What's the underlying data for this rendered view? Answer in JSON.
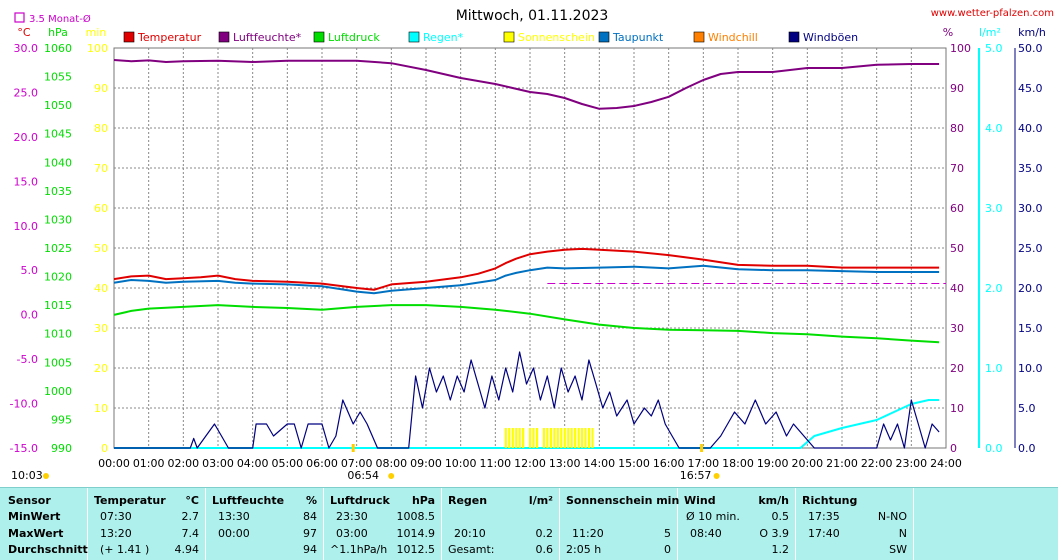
{
  "header": {
    "title": "Mittwoch, 01.11.2023",
    "site": "www.wetter-pfalzen.com",
    "monat_label": "3.5 Monat-Ø"
  },
  "colors": {
    "temperatur": "#e00000",
    "luftfeuchte": "#800080",
    "luftdruck": "#00dd00",
    "regen": "#00ffff",
    "sonnenschein": "#ffff00",
    "taupunkt": "#0070c0",
    "windchill": "#ff8000",
    "windboeen": "#000080",
    "monat": "#cc00cc",
    "grid": "#888888"
  },
  "legend": [
    {
      "key": "temperatur",
      "label": "Temperatur"
    },
    {
      "key": "luftfeuchte",
      "label": "Luftfeuchte*"
    },
    {
      "key": "luftdruck",
      "label": "Luftdruck"
    },
    {
      "key": "regen",
      "label": "Regen*"
    },
    {
      "key": "sonnenschein",
      "label": "Sonnenschein"
    },
    {
      "key": "taupunkt",
      "label": "Taupunkt"
    },
    {
      "key": "windchill",
      "label": "Windchill"
    },
    {
      "key": "windboeen",
      "label": "Windböen"
    }
  ],
  "chart_data": {
    "type": "line",
    "title": "Mittwoch, 01.11.2023",
    "xlim": [
      0,
      24
    ],
    "x_ticks": [
      "00:00",
      "01:00",
      "02:00",
      "03:00",
      "04:00",
      "05:00",
      "06:00",
      "07:00",
      "08:00",
      "09:00",
      "10:00",
      "11:00",
      "12:00",
      "13:00",
      "14:00",
      "15:00",
      "16:00",
      "17:00",
      "18:00",
      "19:00",
      "20:00",
      "21:00",
      "22:00",
      "23:00",
      "24:00"
    ],
    "sunrise": "06:54",
    "sunset": "16:57",
    "sunshine_duration": "10:03",
    "grid": true,
    "axes": {
      "temp": {
        "unit": "°C",
        "lim": [
          -15,
          30
        ],
        "ticks": [
          "30.0",
          "25.0",
          "20.0",
          "15.0",
          "10.0",
          "5.0",
          "0.0",
          "-5.0",
          "-10.0",
          "-15.0"
        ]
      },
      "press": {
        "unit": "hPa",
        "lim": [
          990,
          1060
        ],
        "ticks": [
          "1060",
          "1055",
          "1050",
          "1045",
          "1040",
          "1035",
          "1030",
          "1025",
          "1020",
          "1015",
          "1010",
          "1005",
          "1000",
          "995",
          "990"
        ]
      },
      "sunmin": {
        "unit": "min",
        "lim": [
          0,
          100
        ],
        "ticks": [
          "100",
          "90",
          "80",
          "70",
          "60",
          "50",
          "40",
          "30",
          "20",
          "10",
          "0"
        ]
      },
      "hum": {
        "unit": "%",
        "lim": [
          0,
          100
        ],
        "ticks": [
          "100",
          "90",
          "80",
          "70",
          "60",
          "50",
          "40",
          "30",
          "20",
          "10",
          "0"
        ]
      },
      "rain": {
        "unit": "l/m²",
        "lim": [
          0,
          5
        ],
        "ticks": [
          "5.0",
          "4.0",
          "3.0",
          "2.0",
          "1.0",
          "0.0"
        ]
      },
      "wind": {
        "unit": "km/h",
        "lim": [
          0,
          50
        ],
        "ticks": [
          "50.0",
          "45.0",
          "40.0",
          "35.0",
          "30.0",
          "25.0",
          "20.0",
          "15.0",
          "10.0",
          "5.0",
          "0.0"
        ]
      }
    },
    "monat_avg_temp": 3.5,
    "series": [
      {
        "name": "Temperatur",
        "axis": "temp",
        "color": "#e00000",
        "x": [
          0,
          0.5,
          1,
          1.5,
          2,
          2.5,
          3,
          3.5,
          4,
          5,
          6,
          7,
          7.5,
          8,
          9,
          10,
          10.5,
          11,
          11.3,
          11.6,
          12,
          12.5,
          13,
          13.5,
          14,
          15,
          16,
          17,
          18,
          19,
          20,
          21,
          22,
          23,
          23.8
        ],
        "y": [
          4.0,
          4.3,
          4.4,
          4.0,
          4.1,
          4.2,
          4.4,
          4.0,
          3.8,
          3.7,
          3.5,
          3.0,
          2.8,
          3.4,
          3.7,
          4.2,
          4.6,
          5.2,
          5.8,
          6.3,
          6.8,
          7.1,
          7.3,
          7.4,
          7.3,
          7.1,
          6.7,
          6.2,
          5.6,
          5.5,
          5.5,
          5.3,
          5.3,
          5.3,
          5.3
        ]
      },
      {
        "name": "Taupunkt",
        "axis": "temp",
        "color": "#0070c0",
        "x": [
          0,
          0.5,
          1,
          1.5,
          2,
          3,
          3.5,
          4,
          5,
          6,
          7,
          7.5,
          8,
          9,
          10,
          11,
          11.3,
          11.6,
          12,
          12.5,
          13,
          14,
          15,
          16,
          17,
          18,
          19,
          20,
          21,
          22,
          23,
          23.8
        ],
        "y": [
          3.6,
          3.9,
          3.8,
          3.6,
          3.7,
          3.8,
          3.6,
          3.5,
          3.4,
          3.2,
          2.6,
          2.4,
          2.7,
          3.0,
          3.3,
          3.9,
          4.4,
          4.7,
          5.0,
          5.3,
          5.2,
          5.3,
          5.4,
          5.2,
          5.5,
          5.1,
          5.0,
          5.0,
          4.9,
          4.8,
          4.8,
          4.8
        ]
      },
      {
        "name": "Luftfeuchte",
        "axis": "hum",
        "color": "#800080",
        "x": [
          0,
          0.5,
          1,
          1.5,
          2,
          3,
          4,
          5,
          6,
          7,
          8,
          9,
          10,
          11,
          12,
          12.5,
          13,
          13.5,
          14,
          14.5,
          15,
          15.5,
          16,
          16.5,
          17,
          17.5,
          18,
          19,
          20,
          21,
          22,
          23,
          23.8
        ],
        "y": [
          97,
          96.7,
          96.9,
          96.5,
          96.7,
          96.8,
          96.5,
          96.8,
          96.8,
          96.8,
          96.2,
          94.5,
          92.5,
          91.0,
          89,
          88.5,
          87.5,
          86,
          84.8,
          85,
          85.5,
          86.5,
          87.8,
          90,
          92,
          93.5,
          94,
          94,
          95,
          95,
          95.8,
          96,
          96
        ]
      },
      {
        "name": "Luftdruck",
        "axis": "press",
        "color": "#00dd00",
        "x": [
          0,
          0.5,
          1,
          2,
          3,
          4,
          5,
          6,
          7,
          8,
          9,
          10,
          11,
          12,
          13,
          14,
          15,
          16,
          17,
          18,
          19,
          20,
          21,
          22,
          23,
          23.8
        ],
        "y": [
          1013.3,
          1014,
          1014.4,
          1014.7,
          1015,
          1014.7,
          1014.5,
          1014.2,
          1014.7,
          1015,
          1015,
          1014.7,
          1014.2,
          1013.5,
          1012.5,
          1011.6,
          1011,
          1010.7,
          1010.6,
          1010.5,
          1010.1,
          1009.9,
          1009.5,
          1009.2,
          1008.8,
          1008.5
        ]
      },
      {
        "name": "Regen",
        "axis": "rain",
        "color": "#00ffff",
        "x": [
          0,
          19.8,
          20.2,
          21,
          21.5,
          22,
          22.5,
          23,
          23.5,
          23.8
        ],
        "y": [
          0,
          0,
          0.15,
          0.25,
          0.3,
          0.35,
          0.45,
          0.55,
          0.6,
          0.6
        ]
      },
      {
        "name": "Windböen",
        "axis": "wind",
        "color": "#000080",
        "x": [
          0,
          2.2,
          2.3,
          2.4,
          2.9,
          3.1,
          3.3,
          4.0,
          4.1,
          4.4,
          4.6,
          5.0,
          5.2,
          5.4,
          5.6,
          6.0,
          6.2,
          6.4,
          6.6,
          6.9,
          7.1,
          7.3,
          7.6,
          8.5,
          8.7,
          8.9,
          9.1,
          9.3,
          9.5,
          9.7,
          9.9,
          10.1,
          10.3,
          10.5,
          10.7,
          10.9,
          11.1,
          11.3,
          11.5,
          11.7,
          11.9,
          12.1,
          12.3,
          12.5,
          12.7,
          12.9,
          13.1,
          13.3,
          13.5,
          13.7,
          13.9,
          14.1,
          14.3,
          14.5,
          14.8,
          15.0,
          15.3,
          15.5,
          15.7,
          15.9,
          16.1,
          16.3,
          16.6,
          17.2,
          17.5,
          17.9,
          18.2,
          18.5,
          18.8,
          19.1,
          19.4,
          19.6,
          19.9,
          20.2,
          20.5,
          21.0,
          21.5,
          22.0,
          22.2,
          22.4,
          22.6,
          22.8,
          23.0,
          23.2,
          23.4,
          23.6,
          23.8
        ],
        "y": [
          0,
          0,
          1.2,
          0,
          3,
          1.5,
          0,
          0,
          3,
          3,
          1.5,
          3,
          3,
          0,
          3,
          3,
          0,
          1.5,
          6,
          3,
          4.5,
          3,
          0,
          0,
          9,
          5,
          10,
          7,
          9,
          6,
          9,
          7,
          11,
          8,
          5,
          9,
          6,
          10,
          7,
          12,
          8,
          10,
          6,
          9,
          5,
          10,
          7,
          9,
          6,
          11,
          8,
          5,
          7,
          4,
          6,
          3,
          5,
          4,
          6,
          3,
          1.5,
          0,
          0,
          0,
          1.5,
          4.5,
          3,
          6,
          3,
          4.5,
          1.5,
          3,
          1.5,
          0,
          0,
          0,
          0,
          0,
          3,
          1,
          3,
          0,
          6,
          3,
          0,
          3,
          2
        ]
      },
      {
        "name": "Sonnenschein",
        "axis": "sunmin",
        "color": "#ffff00",
        "bars_x": [
          11.3,
          11.4,
          11.5,
          11.6,
          11.7,
          11.8,
          12.0,
          12.1,
          12.2,
          12.4,
          12.5,
          12.6,
          12.7,
          12.8,
          12.9,
          13.0,
          13.1,
          13.2,
          13.3,
          13.4,
          13.5,
          13.6,
          13.7,
          13.8
        ],
        "bar_value": 5
      }
    ]
  },
  "table": {
    "headers": {
      "sensor": "Sensor",
      "temp": "Temperatur",
      "temp_unit": "°C",
      "hum": "Luftfeuchte",
      "hum_unit": "%",
      "press": "Luftdruck",
      "press_unit": "hPa",
      "rain": "Regen",
      "rain_unit": "l/m²",
      "sun": "Sonnenschein min",
      "wind": "Wind",
      "wind_unit": "km/h",
      "dir": "Richtung"
    },
    "rows": [
      {
        "label": "MinWert",
        "temp_time": "07:30",
        "temp": "2.7",
        "hum_time": "13:30",
        "hum": "84",
        "press_time": "23:30",
        "press": "1008.5",
        "rain_time": "",
        "rain": "",
        "sun_time": "",
        "sun": "",
        "wind_time": "Ø 10 min.",
        "wind": "0.5",
        "dir_time": "17:35",
        "dir": "N-NO"
      },
      {
        "label": "MaxWert",
        "temp_time": "13:20",
        "temp": "7.4",
        "hum_time": "00:00",
        "hum": "97",
        "press_time": "03:00",
        "press": "1014.9",
        "rain_time": "20:10",
        "rain": "0.2",
        "sun_time": "11:20",
        "sun": "5",
        "wind_time": "08:40",
        "wind": "O 3.9",
        "dir_time": "17:40",
        "dir": "N"
      },
      {
        "label": "Durchschnitt",
        "temp_time": "(+ 1.41 )",
        "temp": "4.94",
        "hum_time": "",
        "hum": "94",
        "press_time": "^1.1hPa/h",
        "press": "1012.5",
        "rain_time": "Gesamt:",
        "rain": "0.6",
        "sun_time": "2:05 h",
        "sun": "0",
        "wind_time": "",
        "wind": "1.2",
        "dir_time": "",
        "dir": "SW"
      }
    ]
  }
}
